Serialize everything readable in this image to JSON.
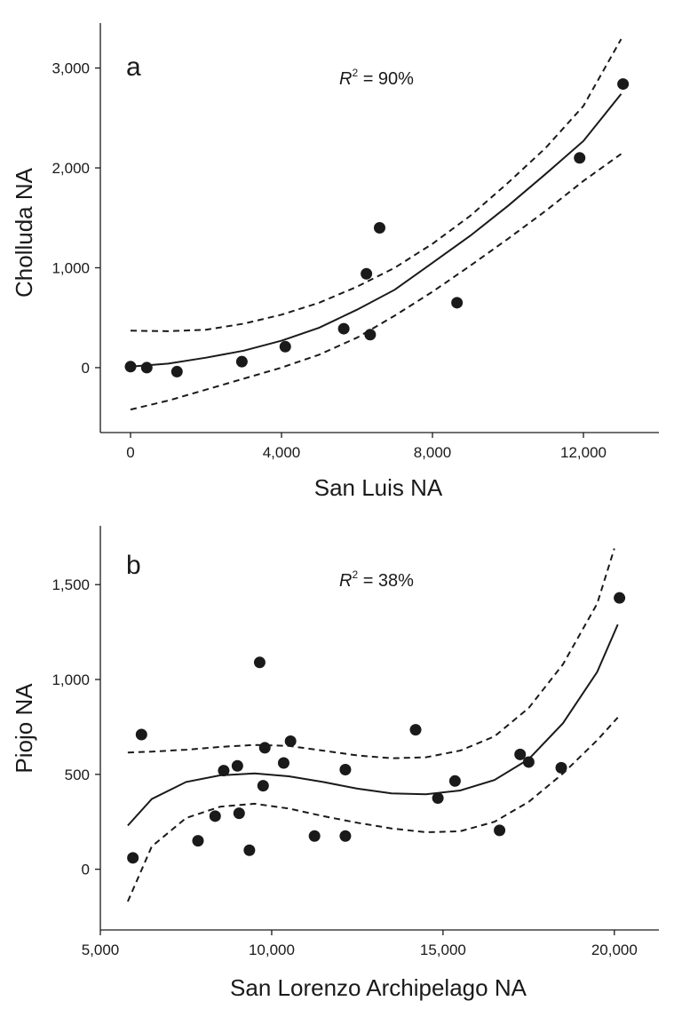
{
  "chart_data": [
    {
      "type": "scatter",
      "panel_label": "a",
      "annotation": {
        "prefix": "R",
        "sup": "2",
        "suffix": " = 90%"
      },
      "xlabel": "San Luis NA",
      "ylabel": "Cholluda NA",
      "xlim": [
        -800,
        14000
      ],
      "ylim": [
        -650,
        3450
      ],
      "xticks": [
        0,
        4000,
        8000,
        12000
      ],
      "xtick_labels": [
        "0",
        "4,000",
        "8,000",
        "12,000"
      ],
      "yticks": [
        0,
        1000,
        2000,
        3000
      ],
      "ytick_labels": [
        "0",
        "1,000",
        "2,000",
        "3,000"
      ],
      "points": [
        {
          "x": 0,
          "y": 10
        },
        {
          "x": 430,
          "y": 0
        },
        {
          "x": 1230,
          "y": -40
        },
        {
          "x": 2950,
          "y": 60
        },
        {
          "x": 4100,
          "y": 210
        },
        {
          "x": 5650,
          "y": 390
        },
        {
          "x": 6250,
          "y": 940
        },
        {
          "x": 6600,
          "y": 1400
        },
        {
          "x": 6350,
          "y": 330
        },
        {
          "x": 8650,
          "y": 650
        },
        {
          "x": 11900,
          "y": 2100
        },
        {
          "x": 13050,
          "y": 2840
        }
      ],
      "fit": [
        {
          "x": 0,
          "y": 10
        },
        {
          "x": 1000,
          "y": 40
        },
        {
          "x": 2000,
          "y": 100
        },
        {
          "x": 3000,
          "y": 170
        },
        {
          "x": 4000,
          "y": 270
        },
        {
          "x": 5000,
          "y": 400
        },
        {
          "x": 6000,
          "y": 580
        },
        {
          "x": 7000,
          "y": 780
        },
        {
          "x": 8000,
          "y": 1050
        },
        {
          "x": 9000,
          "y": 1320
        },
        {
          "x": 10000,
          "y": 1620
        },
        {
          "x": 11000,
          "y": 1940
        },
        {
          "x": 12000,
          "y": 2270
        },
        {
          "x": 13000,
          "y": 2740
        }
      ],
      "ci_upper": [
        {
          "x": 0,
          "y": 370
        },
        {
          "x": 1000,
          "y": 365
        },
        {
          "x": 2000,
          "y": 380
        },
        {
          "x": 3000,
          "y": 440
        },
        {
          "x": 4000,
          "y": 530
        },
        {
          "x": 5000,
          "y": 650
        },
        {
          "x": 6000,
          "y": 810
        },
        {
          "x": 7000,
          "y": 1000
        },
        {
          "x": 8000,
          "y": 1240
        },
        {
          "x": 9000,
          "y": 1520
        },
        {
          "x": 10000,
          "y": 1850
        },
        {
          "x": 11000,
          "y": 2200
        },
        {
          "x": 12000,
          "y": 2620
        },
        {
          "x": 13000,
          "y": 3290
        }
      ],
      "ci_lower": [
        {
          "x": 0,
          "y": -420
        },
        {
          "x": 1000,
          "y": -330
        },
        {
          "x": 2000,
          "y": -220
        },
        {
          "x": 3000,
          "y": -110
        },
        {
          "x": 4000,
          "y": 0
        },
        {
          "x": 5000,
          "y": 130
        },
        {
          "x": 6000,
          "y": 300
        },
        {
          "x": 7000,
          "y": 520
        },
        {
          "x": 8000,
          "y": 760
        },
        {
          "x": 9000,
          "y": 1020
        },
        {
          "x": 10000,
          "y": 1290
        },
        {
          "x": 11000,
          "y": 1570
        },
        {
          "x": 12000,
          "y": 1870
        },
        {
          "x": 13000,
          "y": 2140
        }
      ]
    },
    {
      "type": "scatter",
      "panel_label": "b",
      "annotation": {
        "prefix": "R",
        "sup": "2",
        "suffix": " = 38%"
      },
      "xlabel": "San Lorenzo Archipelago NA",
      "ylabel": "Piojo NA",
      "xlim": [
        5000,
        21300
      ],
      "ylim": [
        -320,
        1810
      ],
      "xticks": [
        5000,
        10000,
        15000,
        20000
      ],
      "xtick_labels": [
        "5,000",
        "10,000",
        "15,000",
        "20,000"
      ],
      "yticks": [
        0,
        500,
        1000,
        1500
      ],
      "ytick_labels": [
        "0",
        "500",
        "1,000",
        "1,500"
      ],
      "points": [
        {
          "x": 5950,
          "y": 60
        },
        {
          "x": 6200,
          "y": 710
        },
        {
          "x": 7850,
          "y": 150
        },
        {
          "x": 8350,
          "y": 280
        },
        {
          "x": 8600,
          "y": 520
        },
        {
          "x": 9000,
          "y": 545
        },
        {
          "x": 9050,
          "y": 295
        },
        {
          "x": 9350,
          "y": 100
        },
        {
          "x": 9650,
          "y": 1090
        },
        {
          "x": 9750,
          "y": 440
        },
        {
          "x": 9800,
          "y": 640
        },
        {
          "x": 10350,
          "y": 560
        },
        {
          "x": 10550,
          "y": 675
        },
        {
          "x": 11250,
          "y": 175
        },
        {
          "x": 12150,
          "y": 525
        },
        {
          "x": 12150,
          "y": 175
        },
        {
          "x": 14200,
          "y": 735
        },
        {
          "x": 14850,
          "y": 375
        },
        {
          "x": 15350,
          "y": 465
        },
        {
          "x": 16650,
          "y": 205
        },
        {
          "x": 17250,
          "y": 605
        },
        {
          "x": 17500,
          "y": 565
        },
        {
          "x": 18450,
          "y": 535
        },
        {
          "x": 20150,
          "y": 1430
        }
      ],
      "fit": [
        {
          "x": 5800,
          "y": 230
        },
        {
          "x": 6500,
          "y": 370
        },
        {
          "x": 7500,
          "y": 460
        },
        {
          "x": 8500,
          "y": 495
        },
        {
          "x": 9500,
          "y": 505
        },
        {
          "x": 10500,
          "y": 490
        },
        {
          "x": 11500,
          "y": 460
        },
        {
          "x": 12500,
          "y": 425
        },
        {
          "x": 13500,
          "y": 400
        },
        {
          "x": 14500,
          "y": 395
        },
        {
          "x": 15500,
          "y": 415
        },
        {
          "x": 16500,
          "y": 470
        },
        {
          "x": 17500,
          "y": 580
        },
        {
          "x": 18500,
          "y": 770
        },
        {
          "x": 19500,
          "y": 1040
        },
        {
          "x": 20100,
          "y": 1290
        }
      ],
      "ci_upper": [
        {
          "x": 5800,
          "y": 615
        },
        {
          "x": 6500,
          "y": 620
        },
        {
          "x": 7500,
          "y": 630
        },
        {
          "x": 8500,
          "y": 645
        },
        {
          "x": 9500,
          "y": 655
        },
        {
          "x": 10500,
          "y": 650
        },
        {
          "x": 11500,
          "y": 625
        },
        {
          "x": 12500,
          "y": 600
        },
        {
          "x": 13500,
          "y": 585
        },
        {
          "x": 14500,
          "y": 590
        },
        {
          "x": 15500,
          "y": 625
        },
        {
          "x": 16500,
          "y": 700
        },
        {
          "x": 17500,
          "y": 850
        },
        {
          "x": 18500,
          "y": 1080
        },
        {
          "x": 19500,
          "y": 1400
        },
        {
          "x": 20000,
          "y": 1690
        }
      ],
      "ci_lower": [
        {
          "x": 5800,
          "y": -170
        },
        {
          "x": 6500,
          "y": 120
        },
        {
          "x": 7500,
          "y": 270
        },
        {
          "x": 8500,
          "y": 330
        },
        {
          "x": 9500,
          "y": 345
        },
        {
          "x": 10500,
          "y": 320
        },
        {
          "x": 11500,
          "y": 280
        },
        {
          "x": 12500,
          "y": 245
        },
        {
          "x": 13500,
          "y": 215
        },
        {
          "x": 14500,
          "y": 195
        },
        {
          "x": 15500,
          "y": 200
        },
        {
          "x": 16500,
          "y": 250
        },
        {
          "x": 17500,
          "y": 355
        },
        {
          "x": 18500,
          "y": 505
        },
        {
          "x": 19500,
          "y": 680
        },
        {
          "x": 20100,
          "y": 800
        }
      ]
    }
  ]
}
